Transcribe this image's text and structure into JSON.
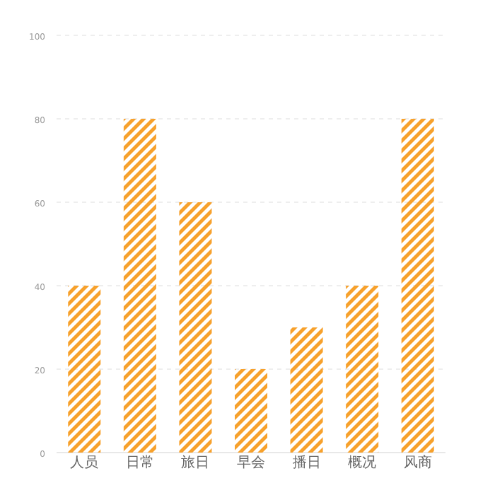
{
  "chart_data": {
    "type": "bar",
    "categories": [
      "人员",
      "日常",
      "旅日",
      "早会",
      "播日",
      "概况",
      "风商"
    ],
    "values": [
      40,
      80,
      60,
      20,
      30,
      40,
      80
    ],
    "color": "#f7a12c",
    "ylim": [
      0,
      100
    ],
    "yticks": [
      0,
      20,
      40,
      60,
      80,
      100
    ],
    "grid": "y"
  }
}
